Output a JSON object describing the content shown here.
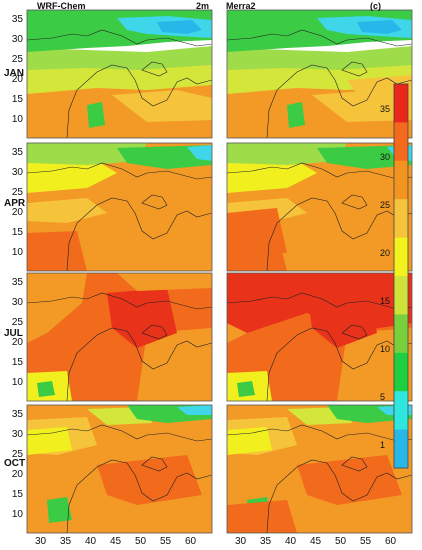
{
  "panel_titles": {
    "left": "WRF-Chem",
    "left_right": "2m",
    "right": "Merra2",
    "right_right": "(c)"
  },
  "months": [
    "JAN",
    "APR",
    "JUL",
    "OCT"
  ],
  "lat_ticks": [
    "35",
    "30",
    "25",
    "20",
    "15",
    "10"
  ],
  "lon_ticks": [
    "30",
    "35",
    "40",
    "45",
    "50",
    "55",
    "60"
  ],
  "colorbar": {
    "labels": [
      "35",
      "30",
      "25",
      "20",
      "15",
      "10",
      "5",
      "1"
    ],
    "colors": [
      "#e8261a",
      "#f46a1d",
      "#f39320",
      "#f5c43a",
      "#f2f21c",
      "#cfe23a",
      "#78d03c",
      "#1fcf42",
      "#2fe7df",
      "#27b7e8"
    ]
  },
  "map_colors": {
    "water": "#27b7e8",
    "cold": "#3ed6e8",
    "green": "#3ccb45",
    "lightgreen": "#9fdc4a",
    "yellowgreen": "#d5e63a",
    "yellow": "#f1ef1e",
    "lightorange": "#f5c43a",
    "orange": "#f39a26",
    "darkorange": "#f26a1c",
    "red": "#e8321a"
  }
}
